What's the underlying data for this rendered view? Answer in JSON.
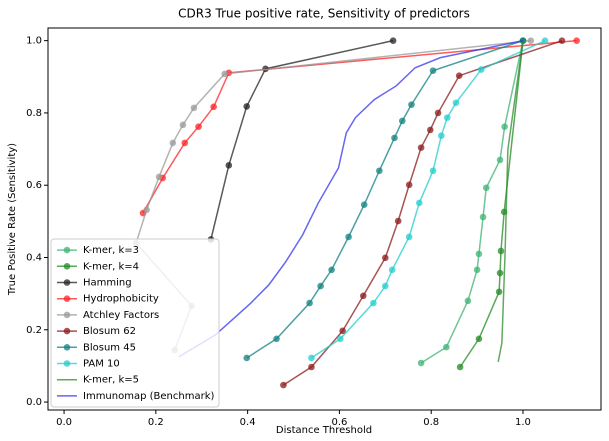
{
  "chart_data": {
    "type": "line",
    "title": "CDR3 True positive rate, Sensitivity of predictors",
    "x_label": "Distance Threshold",
    "y_label": "True Positive Rate (Sensitivity)",
    "xlim": [
      -0.035,
      1.17
    ],
    "ylim": [
      -0.022,
      1.035
    ],
    "xticks": [
      {
        "value": 0,
        "label": "0.0"
      },
      0.2,
      0.4,
      0.6,
      0.8,
      {
        "value": 1,
        "label": "1.0"
      }
    ],
    "yticks": [
      {
        "value": 0,
        "label": "0.0"
      },
      0.2,
      0.4,
      0.6,
      0.8,
      {
        "value": 1,
        "label": "1.0"
      }
    ],
    "legend": "lower left",
    "series": [
      {
        "name": "K-mer, k=3",
        "color": "#3cb371",
        "markers": true,
        "x": [
          0.778,
          0.833,
          0.88,
          0.9,
          0.904,
          0.913,
          0.92,
          0.95,
          0.96,
          1.0
        ],
        "values": [
          0.108,
          0.152,
          0.28,
          0.366,
          0.41,
          0.512,
          0.593,
          0.67,
          0.762,
          1.0
        ]
      },
      {
        "name": "K-mer, k=4",
        "color": "#228b22",
        "markers": true,
        "x": [
          0.863,
          0.904,
          0.948,
          0.95,
          0.952,
          0.959,
          1.0
        ],
        "values": [
          0.097,
          0.175,
          0.305,
          0.357,
          0.418,
          0.526,
          1.0
        ]
      },
      {
        "name": "Hamming",
        "color": "#222222",
        "markers": true,
        "x": [
          0.32,
          0.359,
          0.398,
          0.439,
          0.717
        ],
        "values": [
          0.45,
          0.655,
          0.818,
          0.922,
          1.0
        ]
      },
      {
        "name": "Hydrophobicity",
        "color": "#ff2222",
        "markers": true,
        "x": [
          0.172,
          0.215,
          0.263,
          0.293,
          0.326,
          0.359,
          1.117
        ],
        "values": [
          0.523,
          0.62,
          0.717,
          0.762,
          0.817,
          0.911,
          1.0
        ]
      },
      {
        "name": "Atchley Factors",
        "color": "#999999",
        "markers": true,
        "x": [
          0.241,
          0.278,
          0.157,
          0.18,
          0.207,
          0.237,
          0.259,
          0.283,
          0.35,
          1.017
        ],
        "values": [
          0.144,
          0.266,
          0.44,
          0.532,
          0.623,
          0.717,
          0.767,
          0.814,
          0.908,
          1.0
        ]
      },
      {
        "name": "Blosum 62",
        "color": "#8b1a1a",
        "markers": true,
        "x": [
          0.478,
          0.539,
          0.607,
          0.652,
          0.7,
          0.728,
          0.752,
          0.778,
          0.798,
          0.815,
          0.861,
          1.085
        ],
        "values": [
          0.047,
          0.097,
          0.197,
          0.294,
          0.399,
          0.501,
          0.601,
          0.704,
          0.753,
          0.8,
          0.903,
          1.0
        ]
      },
      {
        "name": "Blosum 45",
        "color": "#108080",
        "markers": true,
        "x": [
          0.398,
          0.463,
          0.535,
          0.559,
          0.583,
          0.62,
          0.654,
          0.687,
          0.72,
          0.737,
          0.757,
          0.804,
          1.0
        ],
        "values": [
          0.122,
          0.175,
          0.274,
          0.321,
          0.366,
          0.457,
          0.546,
          0.64,
          0.731,
          0.778,
          0.823,
          0.917,
          1.0
        ]
      },
      {
        "name": "PAM 10",
        "color": "#22cccc",
        "markers": true,
        "x": [
          0.539,
          0.602,
          0.674,
          0.7,
          0.715,
          0.752,
          0.774,
          0.804,
          0.822,
          0.835,
          0.854,
          0.909,
          1.048
        ],
        "values": [
          0.122,
          0.175,
          0.274,
          0.321,
          0.366,
          0.457,
          0.551,
          0.64,
          0.737,
          0.787,
          0.828,
          0.92,
          1.0
        ]
      },
      {
        "name": "K-mer, k=5",
        "color": "#2e8b2e",
        "markers": false,
        "x": [
          0.946,
          0.954,
          0.961,
          0.967,
          1.0
        ],
        "values": [
          0.111,
          0.163,
          0.413,
          0.698,
          1.0
        ]
      },
      {
        "name": "Immunomap (Benchmark)",
        "color": "#3333ee",
        "markers": false,
        "x": [
          0.25,
          0.33,
          0.407,
          0.446,
          0.483,
          0.52,
          0.554,
          0.598,
          0.615,
          0.635,
          0.676,
          0.724,
          0.765,
          0.82,
          1.0
        ],
        "values": [
          0.125,
          0.186,
          0.274,
          0.324,
          0.388,
          0.463,
          0.551,
          0.648,
          0.745,
          0.787,
          0.837,
          0.875,
          0.925,
          0.953,
          1.0
        ]
      }
    ]
  }
}
